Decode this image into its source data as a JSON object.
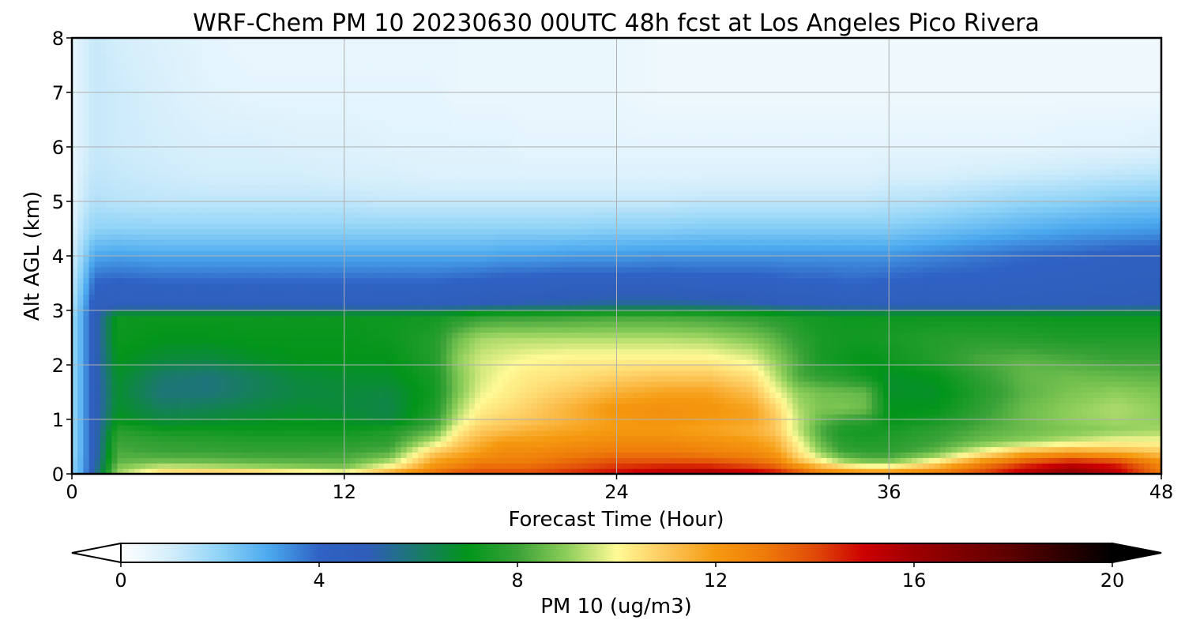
{
  "chart_data": {
    "type": "heatmap",
    "title": "WRF-Chem PM 10  20230630 00UTC 48h fcst at Los Angeles Pico Rivera",
    "xlabel": "Forecast Time (Hour)",
    "ylabel": "Alt AGL (km)",
    "xlim": [
      0,
      48
    ],
    "ylim": [
      0,
      8
    ],
    "xticks": [
      "0",
      "12",
      "24",
      "36",
      "48"
    ],
    "yticks": [
      "0",
      "1",
      "2",
      "3",
      "4",
      "5",
      "6",
      "7",
      "8"
    ],
    "grid": true,
    "colorbar": {
      "label": "PM 10  (ug/m3)",
      "range": [
        0,
        20
      ],
      "ticks": [
        "0",
        "4",
        "8",
        "12",
        "16",
        "20"
      ],
      "extend": "both",
      "stops": [
        {
          "value": 0,
          "color": "#ffffff"
        },
        {
          "value": 1,
          "color": "#d4eefb"
        },
        {
          "value": 2,
          "color": "#8fd3f7"
        },
        {
          "value": 3,
          "color": "#4aa8ee"
        },
        {
          "value": 4,
          "color": "#2f62c4"
        },
        {
          "value": 5,
          "color": "#2e5db8"
        },
        {
          "value": 6,
          "color": "#1a7a6a"
        },
        {
          "value": 7,
          "color": "#02951a"
        },
        {
          "value": 8,
          "color": "#3aa238"
        },
        {
          "value": 9,
          "color": "#8ece5a"
        },
        {
          "value": 10,
          "color": "#fffa96"
        },
        {
          "value": 11,
          "color": "#fdc85c"
        },
        {
          "value": 12,
          "color": "#f59a10"
        },
        {
          "value": 13,
          "color": "#ee7a0a"
        },
        {
          "value": 14,
          "color": "#e04a08"
        },
        {
          "value": 15,
          "color": "#cc0000"
        },
        {
          "value": 16,
          "color": "#9e0000"
        },
        {
          "value": 18,
          "color": "#5a0000"
        },
        {
          "value": 20,
          "color": "#000000"
        }
      ]
    },
    "x": [
      0,
      0.5,
      1,
      2,
      4,
      6,
      8,
      10,
      12,
      14,
      16,
      17,
      18,
      19,
      20,
      22,
      24,
      26,
      28,
      30,
      31,
      32,
      33,
      34,
      35,
      36,
      38,
      40,
      42,
      44,
      46,
      48
    ],
    "y": [
      0,
      0.1,
      0.2,
      0.4,
      0.6,
      0.8,
      1.0,
      1.2,
      1.5,
      1.8,
      2.1,
      2.5,
      2.9,
      3.1,
      3.5,
      4.0,
      4.5,
      5.0,
      5.5,
      6.0,
      7.0,
      8.0
    ],
    "z": [
      [
        2.0,
        3.0,
        5.5,
        9.0,
        11.0,
        11.5,
        11.5,
        11.0,
        10.5,
        12.0,
        13.5,
        14.0,
        14.0,
        14.0,
        14.0,
        14.5,
        15.0,
        15.5,
        16.0,
        15.5,
        15.0,
        14.0,
        13.0,
        12.5,
        12.5,
        12.5,
        13.0,
        14.0,
        15.5,
        16.5,
        15.5,
        13.0
      ],
      [
        2.0,
        3.0,
        5.0,
        9.0,
        10.0,
        9.8,
        9.5,
        9.2,
        9.0,
        10.5,
        12.5,
        13.0,
        13.5,
        13.5,
        13.5,
        14.0,
        14.5,
        15.0,
        15.0,
        14.5,
        14.0,
        13.0,
        12.0,
        11.5,
        11.0,
        11.0,
        12.0,
        13.5,
        15.0,
        16.0,
        15.0,
        12.8
      ],
      [
        2.0,
        3.0,
        5.0,
        8.5,
        8.8,
        8.7,
        8.6,
        8.5,
        8.4,
        9.5,
        12.0,
        12.5,
        13.0,
        13.0,
        13.0,
        13.5,
        14.0,
        14.0,
        14.0,
        13.5,
        13.0,
        11.5,
        10.5,
        9.5,
        9.0,
        9.0,
        10.5,
        12.5,
        14.0,
        15.0,
        14.5,
        12.5
      ],
      [
        1.8,
        3.0,
        4.8,
        8.2,
        8.0,
        8.0,
        7.9,
        7.9,
        8.0,
        8.3,
        11.0,
        11.5,
        12.0,
        12.5,
        12.5,
        12.8,
        13.0,
        13.0,
        12.8,
        12.5,
        12.0,
        10.5,
        9.0,
        8.0,
        7.8,
        7.8,
        8.5,
        10.0,
        11.5,
        12.0,
        11.5,
        11.0
      ],
      [
        1.8,
        3.0,
        4.8,
        8.0,
        7.8,
        7.7,
        7.6,
        7.6,
        7.6,
        7.8,
        9.5,
        10.8,
        11.5,
        12.0,
        12.0,
        12.2,
        12.5,
        12.5,
        12.3,
        12.0,
        11.5,
        10.0,
        8.5,
        7.6,
        7.5,
        7.6,
        8.0,
        8.6,
        9.0,
        9.5,
        10.0,
        10.0
      ],
      [
        1.8,
        3.0,
        4.8,
        7.7,
        7.3,
        7.3,
        7.2,
        7.2,
        7.2,
        7.5,
        8.5,
        10.2,
        11.0,
        11.2,
        11.5,
        11.8,
        12.0,
        12.0,
        11.8,
        11.5,
        11.0,
        9.5,
        8.2,
        7.4,
        7.3,
        7.4,
        7.8,
        8.3,
        8.6,
        8.8,
        9.0,
        9.2
      ],
      [
        1.8,
        3.0,
        4.8,
        7.0,
        6.5,
        6.6,
        6.8,
        6.9,
        6.8,
        6.5,
        7.8,
        9.5,
        10.5,
        10.8,
        11.0,
        11.5,
        12.0,
        12.2,
        12.0,
        11.8,
        11.0,
        9.5,
        8.5,
        8.0,
        7.8,
        7.0,
        7.3,
        8.0,
        8.6,
        9.0,
        9.2,
        9.0
      ],
      [
        1.8,
        3.0,
        4.8,
        6.8,
        6.2,
        6.3,
        6.5,
        6.7,
        6.6,
        6.4,
        7.5,
        9.2,
        10.2,
        10.5,
        10.8,
        11.5,
        12.2,
        12.3,
        12.2,
        11.8,
        10.8,
        9.3,
        8.8,
        8.8,
        8.6,
        7.0,
        7.0,
        7.8,
        8.6,
        9.0,
        9.3,
        9.0
      ],
      [
        1.8,
        3.0,
        4.8,
        6.7,
        5.8,
        5.8,
        6.2,
        6.5,
        6.6,
        6.5,
        7.3,
        8.8,
        9.8,
        10.2,
        10.5,
        11.0,
        11.5,
        11.8,
        11.8,
        11.2,
        10.0,
        9.0,
        8.7,
        8.6,
        8.5,
        6.8,
        6.8,
        7.6,
        8.4,
        8.8,
        9.0,
        8.8
      ],
      [
        1.8,
        3.0,
        4.8,
        6.8,
        6.0,
        5.8,
        6.2,
        6.6,
        6.7,
        6.8,
        7.4,
        8.8,
        9.6,
        10.0,
        10.3,
        10.5,
        10.8,
        11.0,
        11.0,
        10.5,
        9.4,
        8.2,
        7.8,
        7.6,
        7.2,
        6.8,
        7.0,
        7.8,
        8.5,
        8.6,
        8.5,
        8.4
      ],
      [
        1.8,
        3.0,
        4.8,
        7.0,
        6.6,
        6.5,
        6.8,
        7.0,
        7.0,
        7.0,
        7.6,
        9.0,
        9.6,
        9.8,
        10.0,
        10.2,
        10.2,
        10.2,
        10.2,
        9.8,
        9.0,
        8.2,
        7.4,
        7.2,
        7.0,
        7.2,
        7.6,
        8.2,
        8.4,
        8.2,
        8.0,
        8.0
      ],
      [
        1.8,
        3.0,
        4.8,
        7.2,
        7.0,
        7.0,
        7.1,
        7.1,
        7.1,
        7.2,
        7.6,
        8.6,
        9.2,
        9.3,
        9.3,
        9.3,
        9.3,
        9.3,
        9.2,
        8.8,
        8.4,
        7.8,
        7.4,
        7.3,
        7.3,
        7.4,
        7.6,
        7.7,
        7.6,
        7.5,
        7.5,
        7.5
      ],
      [
        1.8,
        3.0,
        4.8,
        7.2,
        7.2,
        7.2,
        7.2,
        7.2,
        7.2,
        7.2,
        7.3,
        7.5,
        7.8,
        7.9,
        7.9,
        8.0,
        8.1,
        8.1,
        8.0,
        7.8,
        7.6,
        7.4,
        7.3,
        7.2,
        7.2,
        7.2,
        7.2,
        7.2,
        7.2,
        7.1,
        7.1,
        7.1
      ],
      [
        1.5,
        2.8,
        4.5,
        4.6,
        4.6,
        4.6,
        4.6,
        4.6,
        4.6,
        4.6,
        4.7,
        4.8,
        5.0,
        5.1,
        5.2,
        5.3,
        5.5,
        5.5,
        5.4,
        5.2,
        5.0,
        4.9,
        4.8,
        4.7,
        4.7,
        4.6,
        4.6,
        4.6,
        4.7,
        4.8,
        4.9,
        5.0
      ],
      [
        1.3,
        2.5,
        4.0,
        4.1,
        4.0,
        4.0,
        4.0,
        4.0,
        4.0,
        4.0,
        4.0,
        4.1,
        4.2,
        4.3,
        4.3,
        4.4,
        4.4,
        4.4,
        4.3,
        4.3,
        4.2,
        4.1,
        4.1,
        4.0,
        4.0,
        4.1,
        4.2,
        4.2,
        4.3,
        4.4,
        4.5,
        4.6
      ],
      [
        1.0,
        2.0,
        3.0,
        3.1,
        3.0,
        3.0,
        3.0,
        3.0,
        3.0,
        3.0,
        3.0,
        3.0,
        3.0,
        3.1,
        3.1,
        3.2,
        3.2,
        3.3,
        3.3,
        3.3,
        3.3,
        3.3,
        3.3,
        3.3,
        3.3,
        3.3,
        3.5,
        3.7,
        3.9,
        4.0,
        4.2,
        4.3
      ],
      [
        0.8,
        1.5,
        2.0,
        2.0,
        2.0,
        2.0,
        2.0,
        2.0,
        2.0,
        2.0,
        2.0,
        2.0,
        2.0,
        2.0,
        2.0,
        2.0,
        2.1,
        2.1,
        2.2,
        2.2,
        2.2,
        2.2,
        2.2,
        2.2,
        2.2,
        2.2,
        2.4,
        2.6,
        2.8,
        3.0,
        3.1,
        3.2
      ],
      [
        0.6,
        1.2,
        1.5,
        1.4,
        1.3,
        1.3,
        1.3,
        1.3,
        1.3,
        1.2,
        1.2,
        1.2,
        1.2,
        1.2,
        1.2,
        1.2,
        1.2,
        1.2,
        1.3,
        1.3,
        1.3,
        1.3,
        1.3,
        1.3,
        1.3,
        1.4,
        1.5,
        1.7,
        1.9,
        2.0,
        2.2,
        2.3
      ],
      [
        0.5,
        1.0,
        1.3,
        1.2,
        1.1,
        1.0,
        1.0,
        1.0,
        0.9,
        0.9,
        0.8,
        0.8,
        0.8,
        0.8,
        0.8,
        0.8,
        0.8,
        0.8,
        0.8,
        0.8,
        0.8,
        0.8,
        0.8,
        0.8,
        0.8,
        0.9,
        0.9,
        1.0,
        1.1,
        1.2,
        1.3,
        1.4
      ],
      [
        0.5,
        0.9,
        1.2,
        1.1,
        1.0,
        0.9,
        0.9,
        0.8,
        0.8,
        0.7,
        0.7,
        0.7,
        0.7,
        0.7,
        0.6,
        0.6,
        0.6,
        0.6,
        0.6,
        0.6,
        0.6,
        0.6,
        0.6,
        0.6,
        0.6,
        0.6,
        0.6,
        0.6,
        0.6,
        0.7,
        0.7,
        0.8
      ],
      [
        0.5,
        0.9,
        1.2,
        1.1,
        0.9,
        0.7,
        0.6,
        0.6,
        0.6,
        0.6,
        0.6,
        0.5,
        0.5,
        0.5,
        0.5,
        0.5,
        0.5,
        0.4,
        0.4,
        0.4,
        0.4,
        0.4,
        0.4,
        0.4,
        0.4,
        0.4,
        0.4,
        0.4,
        0.4,
        0.4,
        0.4,
        0.4
      ],
      [
        0.5,
        0.9,
        1.2,
        1.0,
        0.8,
        0.6,
        0.5,
        0.5,
        0.5,
        0.5,
        0.5,
        0.5,
        0.5,
        0.5,
        0.5,
        0.5,
        0.5,
        0.4,
        0.4,
        0.4,
        0.4,
        0.4,
        0.4,
        0.4,
        0.4,
        0.4,
        0.4,
        0.4,
        0.4,
        0.4,
        0.4,
        0.4
      ]
    ]
  }
}
